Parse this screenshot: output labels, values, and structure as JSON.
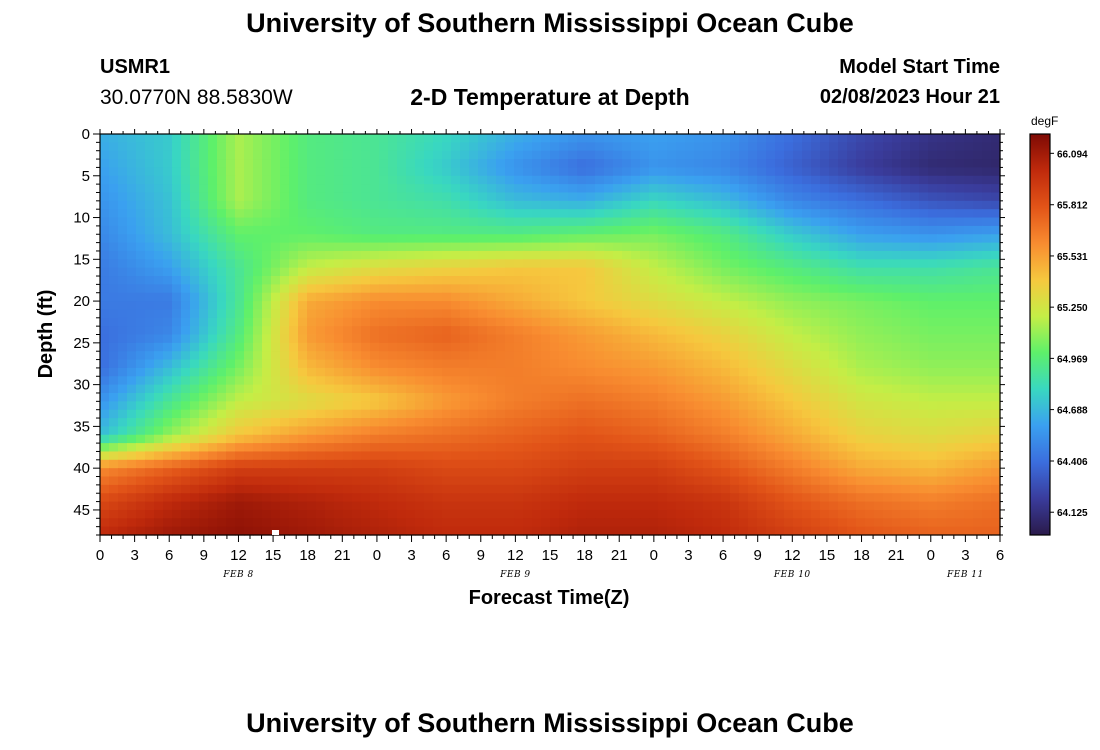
{
  "header": {
    "title": "University of Southern Mississippi Ocean Cube",
    "station_id": "USMR1",
    "station_coords": "30.0770N  88.5830W",
    "model_start_label": "Model Start Time",
    "model_start_value": "02/08/2023 Hour 21"
  },
  "footer": {
    "title": "University of Southern Mississippi Ocean Cube"
  },
  "colors": {
    "scale": [
      "#2a1a4a",
      "#3a3c9c",
      "#3b6ede",
      "#3aa0f0",
      "#39d8c0",
      "#5ef06a",
      "#c4ee46",
      "#f6c83e",
      "#f88c30",
      "#e25418",
      "#c02a0c",
      "#7e0a04"
    ]
  },
  "chart_data": {
    "type": "heatmap",
    "title": "2-D Temperature at Depth",
    "xlabel": "Forecast Time(Z)",
    "ylabel": "Depth (ft)",
    "x_tick_labels": [
      "0",
      "3",
      "6",
      "9",
      "12",
      "15",
      "18",
      "21",
      "0",
      "3",
      "6",
      "9",
      "12",
      "15",
      "18",
      "21",
      "0",
      "3",
      "6",
      "9",
      "12",
      "15",
      "18",
      "21",
      "0",
      "3",
      "6"
    ],
    "x_date_labels": [
      {
        "label": "FEB 8",
        "tick_index": 4
      },
      {
        "label": "FEB 9",
        "tick_index": 12
      },
      {
        "label": "FEB 10",
        "tick_index": 20
      },
      {
        "label": "FEB 11",
        "tick_index": 25
      }
    ],
    "ylim": [
      0,
      48
    ],
    "y_ticks": [
      0,
      5,
      10,
      15,
      20,
      25,
      30,
      35,
      40,
      45
    ],
    "colorbar": {
      "unit": "degF",
      "range": [
        64.0,
        66.2
      ],
      "tick_values": [
        "66.094",
        "65.812",
        "65.531",
        "65.250",
        "64.969",
        "64.688",
        "64.406",
        "64.125"
      ]
    },
    "depths_ft": [
      0,
      4,
      8,
      12,
      16,
      20,
      24,
      28,
      32,
      36,
      40,
      44,
      48
    ],
    "times_h": [
      0,
      6,
      12,
      18,
      24,
      30,
      36,
      42,
      48,
      54,
      60,
      66,
      72,
      78
    ],
    "values": [
      [
        64.65,
        64.75,
        65.15,
        64.95,
        64.9,
        64.8,
        64.65,
        64.55,
        64.6,
        64.55,
        64.4,
        64.25,
        64.15,
        64.1
      ],
      [
        64.6,
        64.75,
        65.15,
        64.95,
        64.9,
        64.75,
        64.55,
        64.4,
        64.55,
        64.5,
        64.35,
        64.2,
        64.1,
        64.08
      ],
      [
        64.55,
        64.72,
        65.15,
        64.95,
        64.9,
        64.85,
        64.7,
        64.65,
        64.8,
        64.7,
        64.5,
        64.4,
        64.3,
        64.25
      ],
      [
        64.5,
        64.7,
        65.0,
        65.0,
        64.95,
        64.95,
        64.95,
        65.0,
        65.05,
        64.95,
        64.75,
        64.6,
        64.55,
        64.6
      ],
      [
        64.45,
        64.6,
        64.9,
        65.2,
        65.3,
        65.35,
        65.4,
        65.4,
        65.2,
        65.05,
        64.95,
        64.85,
        64.85,
        64.9
      ],
      [
        64.45,
        64.45,
        64.9,
        65.5,
        65.6,
        65.6,
        65.5,
        65.4,
        65.3,
        65.2,
        65.1,
        65.05,
        65.0,
        65.0
      ],
      [
        64.4,
        64.5,
        64.95,
        65.55,
        65.7,
        65.75,
        65.65,
        65.55,
        65.45,
        65.35,
        65.2,
        65.1,
        65.05,
        65.05
      ],
      [
        64.4,
        64.7,
        65.05,
        65.45,
        65.6,
        65.65,
        65.65,
        65.6,
        65.55,
        65.45,
        65.3,
        65.15,
        65.1,
        65.1
      ],
      [
        64.55,
        64.9,
        65.2,
        65.3,
        65.4,
        65.55,
        65.65,
        65.7,
        65.65,
        65.55,
        65.4,
        65.25,
        65.2,
        65.2
      ],
      [
        64.7,
        65.1,
        65.4,
        65.55,
        65.65,
        65.7,
        65.75,
        65.8,
        65.75,
        65.65,
        65.5,
        65.35,
        65.3,
        65.35
      ],
      [
        65.6,
        65.75,
        65.9,
        65.9,
        65.9,
        65.85,
        65.85,
        65.9,
        65.9,
        65.8,
        65.65,
        65.5,
        65.45,
        65.55
      ],
      [
        65.85,
        66.0,
        66.1,
        66.05,
        66.0,
        65.95,
        65.95,
        66.0,
        66.0,
        65.95,
        65.8,
        65.7,
        65.65,
        65.7
      ],
      [
        66.0,
        66.1,
        66.15,
        66.1,
        66.05,
        66.0,
        66.0,
        66.05,
        66.05,
        66.0,
        65.9,
        65.8,
        65.75,
        65.75
      ]
    ]
  }
}
